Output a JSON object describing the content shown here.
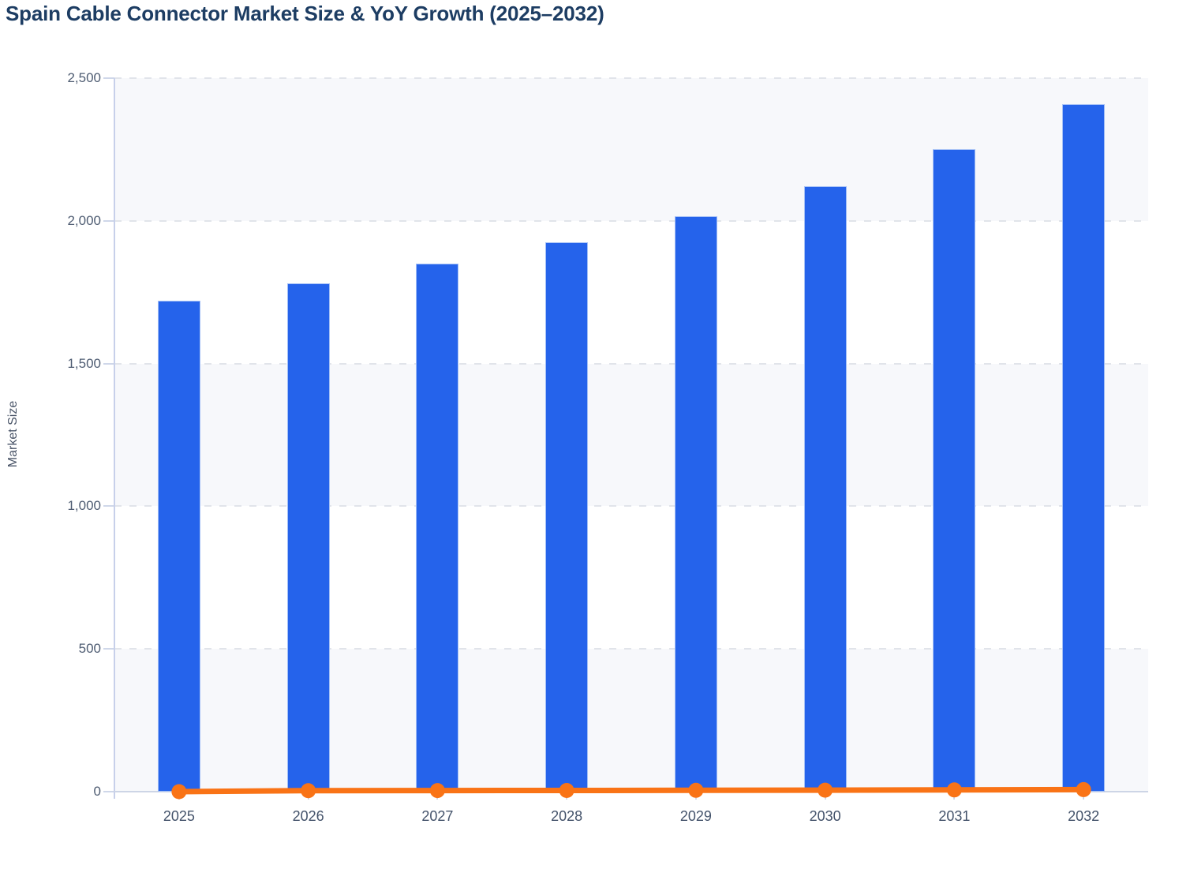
{
  "page": {
    "title": "Spain Cable Connector Market Size & YoY Growth (2025–2032)"
  },
  "chart_data": {
    "type": "bar",
    "title": "Spain Cable Connector Market Size & YoY Growth (2025–2032)",
    "categories": [
      "2025",
      "2026",
      "2027",
      "2028",
      "2029",
      "2030",
      "2031",
      "2032"
    ],
    "series": [
      {
        "name": "Market Size",
        "mark": "bar",
        "color": "#2563eb",
        "values": [
          1720,
          1780,
          1850,
          1925,
          2015,
          2120,
          2250,
          2410
        ]
      },
      {
        "name": "YoY Growth",
        "mark": "line",
        "color": "#f97316",
        "values": [
          0,
          3.5,
          3.9,
          4.1,
          4.7,
          5.2,
          6.1,
          7.1
        ]
      }
    ],
    "xlabel": "",
    "ylabel": "Market Size",
    "ylim": [
      0,
      2500
    ],
    "y_ticks": [
      0,
      500,
      1000,
      1500,
      2000,
      2500
    ],
    "y_tick_labels": [
      "0",
      "500",
      "1,000",
      "1,500",
      "2,000",
      "2,500"
    ],
    "grid": "horizontal-dashed",
    "legend": "none",
    "plot_bands": "alternating-light-from-top"
  },
  "colors": {
    "bar": "#2563eb",
    "bar_border": "#a3bff6",
    "line": "#f97316",
    "band": "#f7f8fb",
    "grid": "#e1e4ea",
    "axis": "#c7d0ea",
    "baseline": "#cdd5e6",
    "tick_text": "#4e5c72",
    "title_text": "#1d3d63",
    "axis_title_text": "#4a5568",
    "background": "#ffffff"
  }
}
